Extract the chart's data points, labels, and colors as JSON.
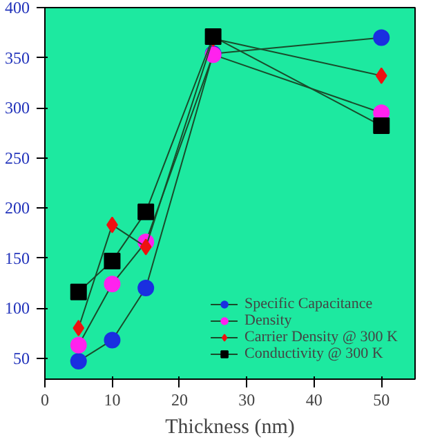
{
  "chart_data": {
    "type": "line",
    "xlabel": "Thickness (nm)",
    "x": [
      5,
      10,
      15,
      25,
      50
    ],
    "series": [
      {
        "name": "Specific Capacitance",
        "color": "#1a2fe0",
        "marker": "circle",
        "values": [
          47,
          68,
          120,
          354,
          370
        ]
      },
      {
        "name": "Density",
        "color": "#ff22ee",
        "marker": "circle",
        "values": [
          63,
          124,
          166,
          353,
          295
        ]
      },
      {
        "name": "Carrier Density @ 300 K",
        "color": "#ee1111",
        "marker": "diamond",
        "values": [
          80,
          183,
          161,
          369,
          332
        ]
      },
      {
        "name": "Conductivity @ 300 K",
        "color": "#000000",
        "marker": "square",
        "values": [
          116,
          147,
          196,
          371,
          282
        ]
      }
    ],
    "xlim": [
      0,
      55
    ],
    "ylim": [
      29,
      400
    ],
    "xticks": [
      0,
      10,
      20,
      30,
      40,
      50
    ],
    "yticks": [
      50,
      100,
      150,
      200,
      250,
      300,
      350,
      400
    ],
    "grid": false,
    "legend": "bottom right",
    "line_style": "solid"
  }
}
